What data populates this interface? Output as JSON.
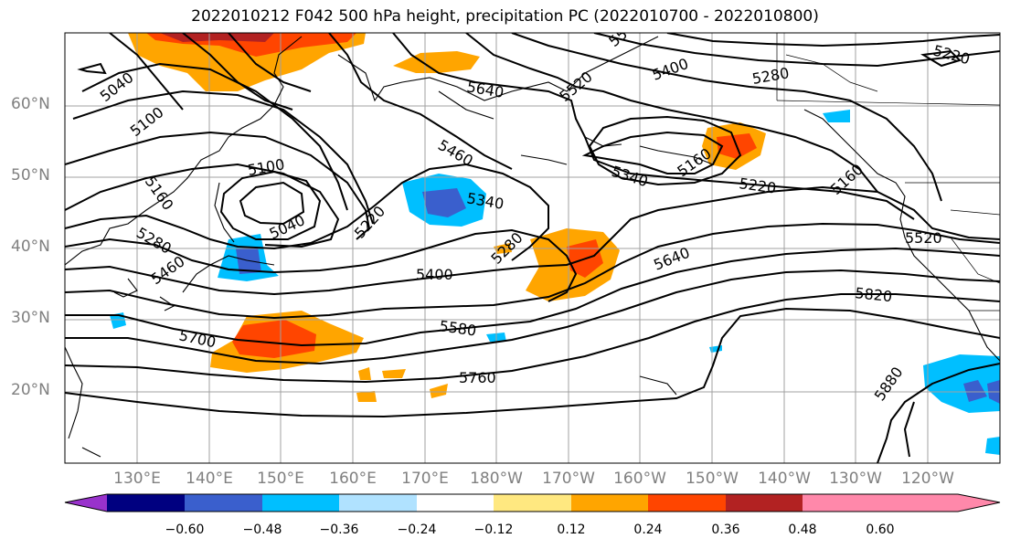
{
  "title": "2022010212 F042 500 hPa height, precipitation PC (2022010700 - 2022010800)",
  "latitude_labels": [
    "60°N",
    "50°N",
    "40°N",
    "30°N",
    "20°N"
  ],
  "longitude_labels": [
    "130°E",
    "140°E",
    "150°E",
    "160°E",
    "170°E",
    "180°W",
    "170°W",
    "160°W",
    "150°W",
    "140°W",
    "130°W",
    "120°W"
  ],
  "contour_labels": [
    "5040",
    "5100",
    "5160",
    "5280",
    "5460",
    "5700",
    "5100",
    "5040",
    "5220",
    "5640",
    "5340",
    "5460",
    "5400",
    "5280",
    "5580",
    "5760",
    "5520",
    "5400",
    "5280",
    "5220",
    "5340",
    "5160",
    "5220",
    "5160",
    "5640",
    "5820",
    "5520",
    "5880",
    "55"
  ],
  "colorbar": {
    "colors": [
      "#9932CC",
      "#000080",
      "#3A5FCD",
      "#00BFFF",
      "#B0E2FF",
      "#FFFFFF",
      "#FFE880",
      "#FFA500",
      "#FF4500",
      "#B22222",
      "#FF88AA"
    ],
    "tick_labels": [
      "−0.60",
      "−0.48",
      "−0.36",
      "−0.24",
      "−0.12",
      "0.12",
      "0.24",
      "0.36",
      "0.48",
      "0.60"
    ]
  }
}
